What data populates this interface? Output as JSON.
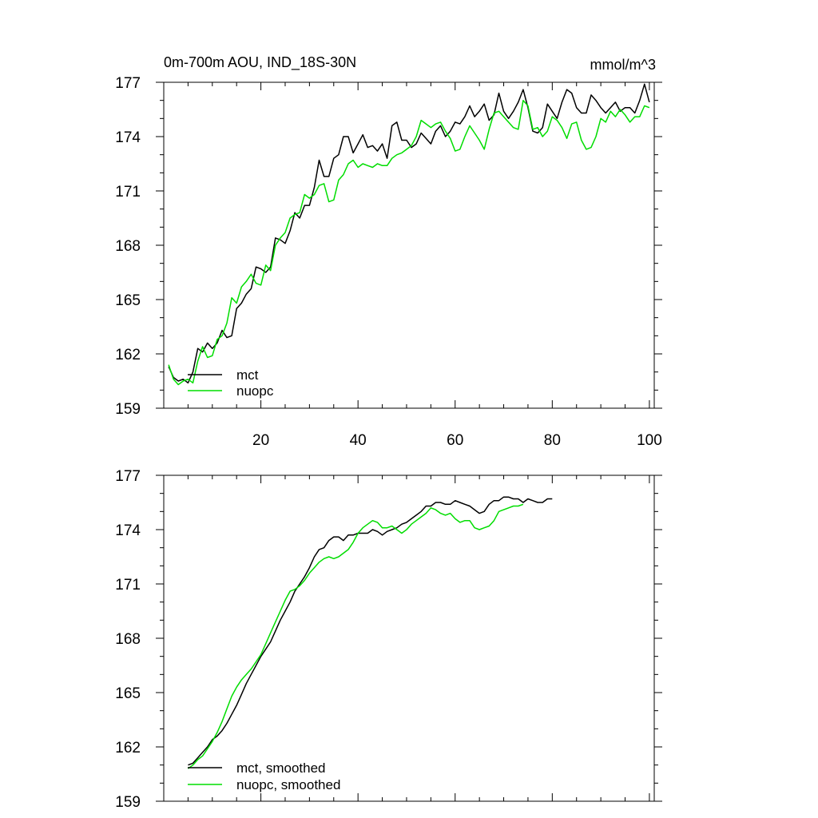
{
  "title": "0m-700m AOU, IND_18S-30N",
  "units": "mmol/m^3",
  "colors": {
    "mct": "#000000",
    "nuopc": "#00dd00"
  },
  "chart_data": [
    {
      "type": "line",
      "title": "0m-700m AOU, IND_18S-30N",
      "units_label": "mmol/m^3",
      "xlim": [
        0,
        101
      ],
      "ylim": [
        159,
        177
      ],
      "xticks": [
        20,
        40,
        60,
        80,
        100
      ],
      "yticks": [
        159,
        162,
        165,
        168,
        171,
        174,
        177
      ],
      "series": [
        {
          "name": "mct",
          "color": "#000000",
          "x_start": 1,
          "values": [
            161.3,
            160.7,
            160.5,
            160.6,
            160.4,
            161.0,
            162.3,
            162.1,
            162.6,
            162.3,
            162.6,
            163.3,
            162.9,
            163.0,
            164.5,
            164.8,
            165.3,
            165.6,
            166.8,
            166.7,
            166.5,
            166.8,
            168.4,
            168.3,
            168.1,
            168.8,
            169.8,
            169.5,
            170.2,
            170.2,
            171.2,
            172.7,
            171.8,
            171.8,
            172.8,
            173.0,
            174.0,
            174.0,
            173.1,
            173.6,
            174.1,
            173.4,
            173.5,
            173.2,
            173.6,
            172.8,
            174.6,
            174.8,
            173.8,
            173.8,
            173.4,
            173.6,
            174.2,
            173.9,
            173.6,
            174.3,
            174.6,
            174.0,
            174.3,
            174.8,
            174.7,
            175.1,
            175.7,
            175.1,
            175.4,
            175.8,
            174.9,
            175.2,
            176.4,
            175.4,
            175.0,
            175.4,
            175.9,
            176.6,
            175.6,
            174.3,
            174.2,
            174.5,
            175.8,
            175.4,
            175.0,
            175.9,
            176.6,
            176.4,
            175.6,
            175.3,
            175.3,
            176.3,
            176.0,
            175.6,
            175.3,
            175.6,
            175.9,
            175.4,
            175.6,
            175.6,
            175.3,
            176.0,
            176.9,
            175.9
          ]
        },
        {
          "name": "nuopc",
          "color": "#00dd00",
          "x_start": 1,
          "values": [
            161.4,
            160.6,
            160.3,
            160.5,
            160.6,
            160.4,
            161.6,
            162.4,
            161.8,
            161.9,
            162.8,
            163.0,
            163.7,
            165.1,
            164.8,
            165.7,
            166.0,
            166.4,
            165.9,
            165.8,
            166.9,
            166.6,
            168.0,
            168.4,
            168.7,
            169.5,
            169.7,
            169.8,
            170.8,
            170.6,
            170.8,
            171.3,
            171.4,
            170.4,
            170.5,
            171.6,
            171.9,
            172.5,
            172.7,
            172.3,
            172.5,
            172.4,
            172.3,
            172.5,
            172.4,
            172.4,
            172.8,
            173.0,
            173.1,
            173.3,
            173.5,
            174.0,
            174.9,
            174.7,
            174.5,
            174.7,
            174.8,
            174.3,
            173.9,
            173.2,
            173.3,
            174.0,
            174.6,
            174.2,
            173.8,
            173.3,
            174.4,
            175.3,
            175.4,
            175.1,
            174.8,
            174.5,
            174.4,
            176.0,
            175.7,
            174.4,
            174.5,
            174.0,
            174.3,
            175.1,
            174.9,
            174.5,
            173.9,
            174.7,
            174.8,
            173.8,
            173.3,
            173.4,
            174.0,
            175.0,
            174.8,
            175.4,
            175.1,
            175.5,
            175.2,
            174.8,
            175.1,
            175.1,
            175.7,
            175.6
          ]
        }
      ],
      "legend": [
        {
          "label": "mct",
          "color": "#000000"
        },
        {
          "label": "nuopc",
          "color": "#00dd00"
        }
      ],
      "legend_position": "bottom-left"
    },
    {
      "type": "line",
      "title": "",
      "xlim": [
        0,
        101
      ],
      "ylim": [
        159,
        177
      ],
      "xticks": [
        20,
        40,
        60,
        80,
        100
      ],
      "yticks": [
        159,
        162,
        165,
        168,
        171,
        174,
        177
      ],
      "series": [
        {
          "name": "mct, smoothed",
          "color": "#000000",
          "x_start": 5,
          "values": [
            161.0,
            161.1,
            161.4,
            161.7,
            162.0,
            162.4,
            162.6,
            162.9,
            163.3,
            163.8,
            164.3,
            164.9,
            165.5,
            166.0,
            166.5,
            167.0,
            167.4,
            167.8,
            168.4,
            169.0,
            169.5,
            170.0,
            170.6,
            171.0,
            171.4,
            171.9,
            172.5,
            172.9,
            173.0,
            173.4,
            173.6,
            173.6,
            173.4,
            173.7,
            173.7,
            173.8,
            173.8,
            173.8,
            174.0,
            173.9,
            173.7,
            173.9,
            174.0,
            174.1,
            174.3,
            174.4,
            174.6,
            174.8,
            175.0,
            175.3,
            175.3,
            175.5,
            175.5,
            175.4,
            175.4,
            175.6,
            175.5,
            175.4,
            175.3,
            175.1,
            174.9,
            175.0,
            175.4,
            175.6,
            175.6,
            175.8,
            175.8,
            175.7,
            175.7,
            175.5,
            175.7,
            175.6,
            175.5,
            175.5,
            175.7,
            175.7
          ]
        },
        {
          "name": "nuopc, smoothed",
          "color": "#00dd00",
          "x_start": 5,
          "values": [
            160.8,
            161.0,
            161.3,
            161.5,
            161.9,
            162.3,
            162.8,
            163.4,
            164.1,
            164.8,
            165.3,
            165.7,
            166.0,
            166.3,
            166.7,
            167.1,
            167.7,
            168.3,
            168.9,
            169.5,
            170.1,
            170.6,
            170.7,
            170.9,
            171.2,
            171.6,
            171.9,
            172.2,
            172.4,
            172.5,
            172.4,
            172.5,
            172.7,
            172.9,
            173.3,
            173.8,
            174.1,
            174.3,
            174.5,
            174.4,
            174.1,
            174.1,
            174.2,
            174.0,
            173.8,
            174.0,
            174.3,
            174.5,
            174.7,
            174.9,
            175.2,
            175.1,
            174.9,
            174.8,
            174.9,
            174.6,
            174.4,
            174.5,
            174.5,
            174.1,
            174.0,
            174.1,
            174.2,
            174.5,
            175.0,
            175.1,
            175.2,
            175.3,
            175.3,
            175.4
          ]
        }
      ],
      "legend": [
        {
          "label": "mct, smoothed",
          "color": "#000000"
        },
        {
          "label": "nuopc, smoothed",
          "color": "#00dd00"
        }
      ],
      "legend_position": "bottom-left"
    }
  ]
}
